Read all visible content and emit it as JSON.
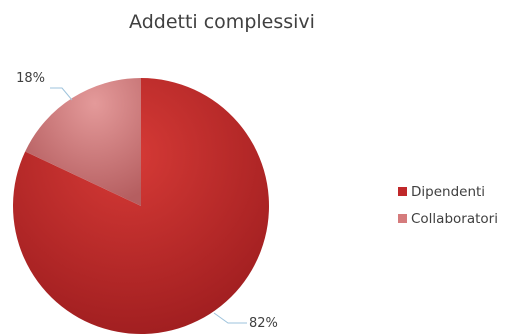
{
  "chart_data": {
    "type": "pie",
    "title": "Addetti complessivi",
    "series": [
      {
        "name": "Dipendenti",
        "value": 82,
        "label": "82%",
        "color": "#c0282a"
      },
      {
        "name": "Collaboratori",
        "value": 18,
        "label": "18%",
        "color": "#d57b7c"
      }
    ],
    "legend_position": "right"
  }
}
